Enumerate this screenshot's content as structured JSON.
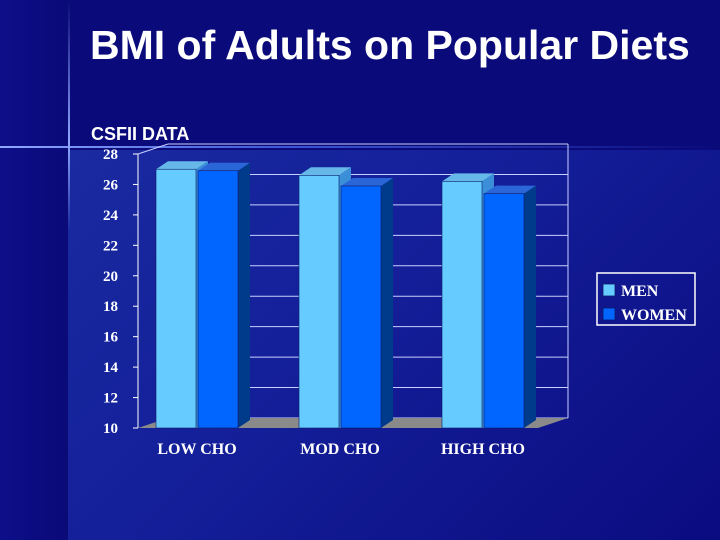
{
  "title": "BMI of Adults on Popular Diets",
  "subtitle": "CSFII DATA",
  "chart_data": {
    "type": "bar",
    "title": "BMI of Adults on Popular Diets",
    "subtitle": "CSFII DATA",
    "categories": [
      "LOW CHO",
      "MOD CHO",
      "HIGH CHO"
    ],
    "series": [
      {
        "name": "MEN",
        "values": [
          27.0,
          26.6,
          26.2
        ],
        "color": "#66ccff"
      },
      {
        "name": "WOMEN",
        "values": [
          26.9,
          25.9,
          25.4
        ],
        "color": "#0066ff"
      }
    ],
    "yticks": [
      10,
      12,
      14,
      16,
      18,
      20,
      22,
      24,
      26,
      28
    ],
    "ylim": [
      10,
      28
    ],
    "xlabel": "",
    "ylabel": "",
    "grid": true,
    "legend": "right"
  }
}
